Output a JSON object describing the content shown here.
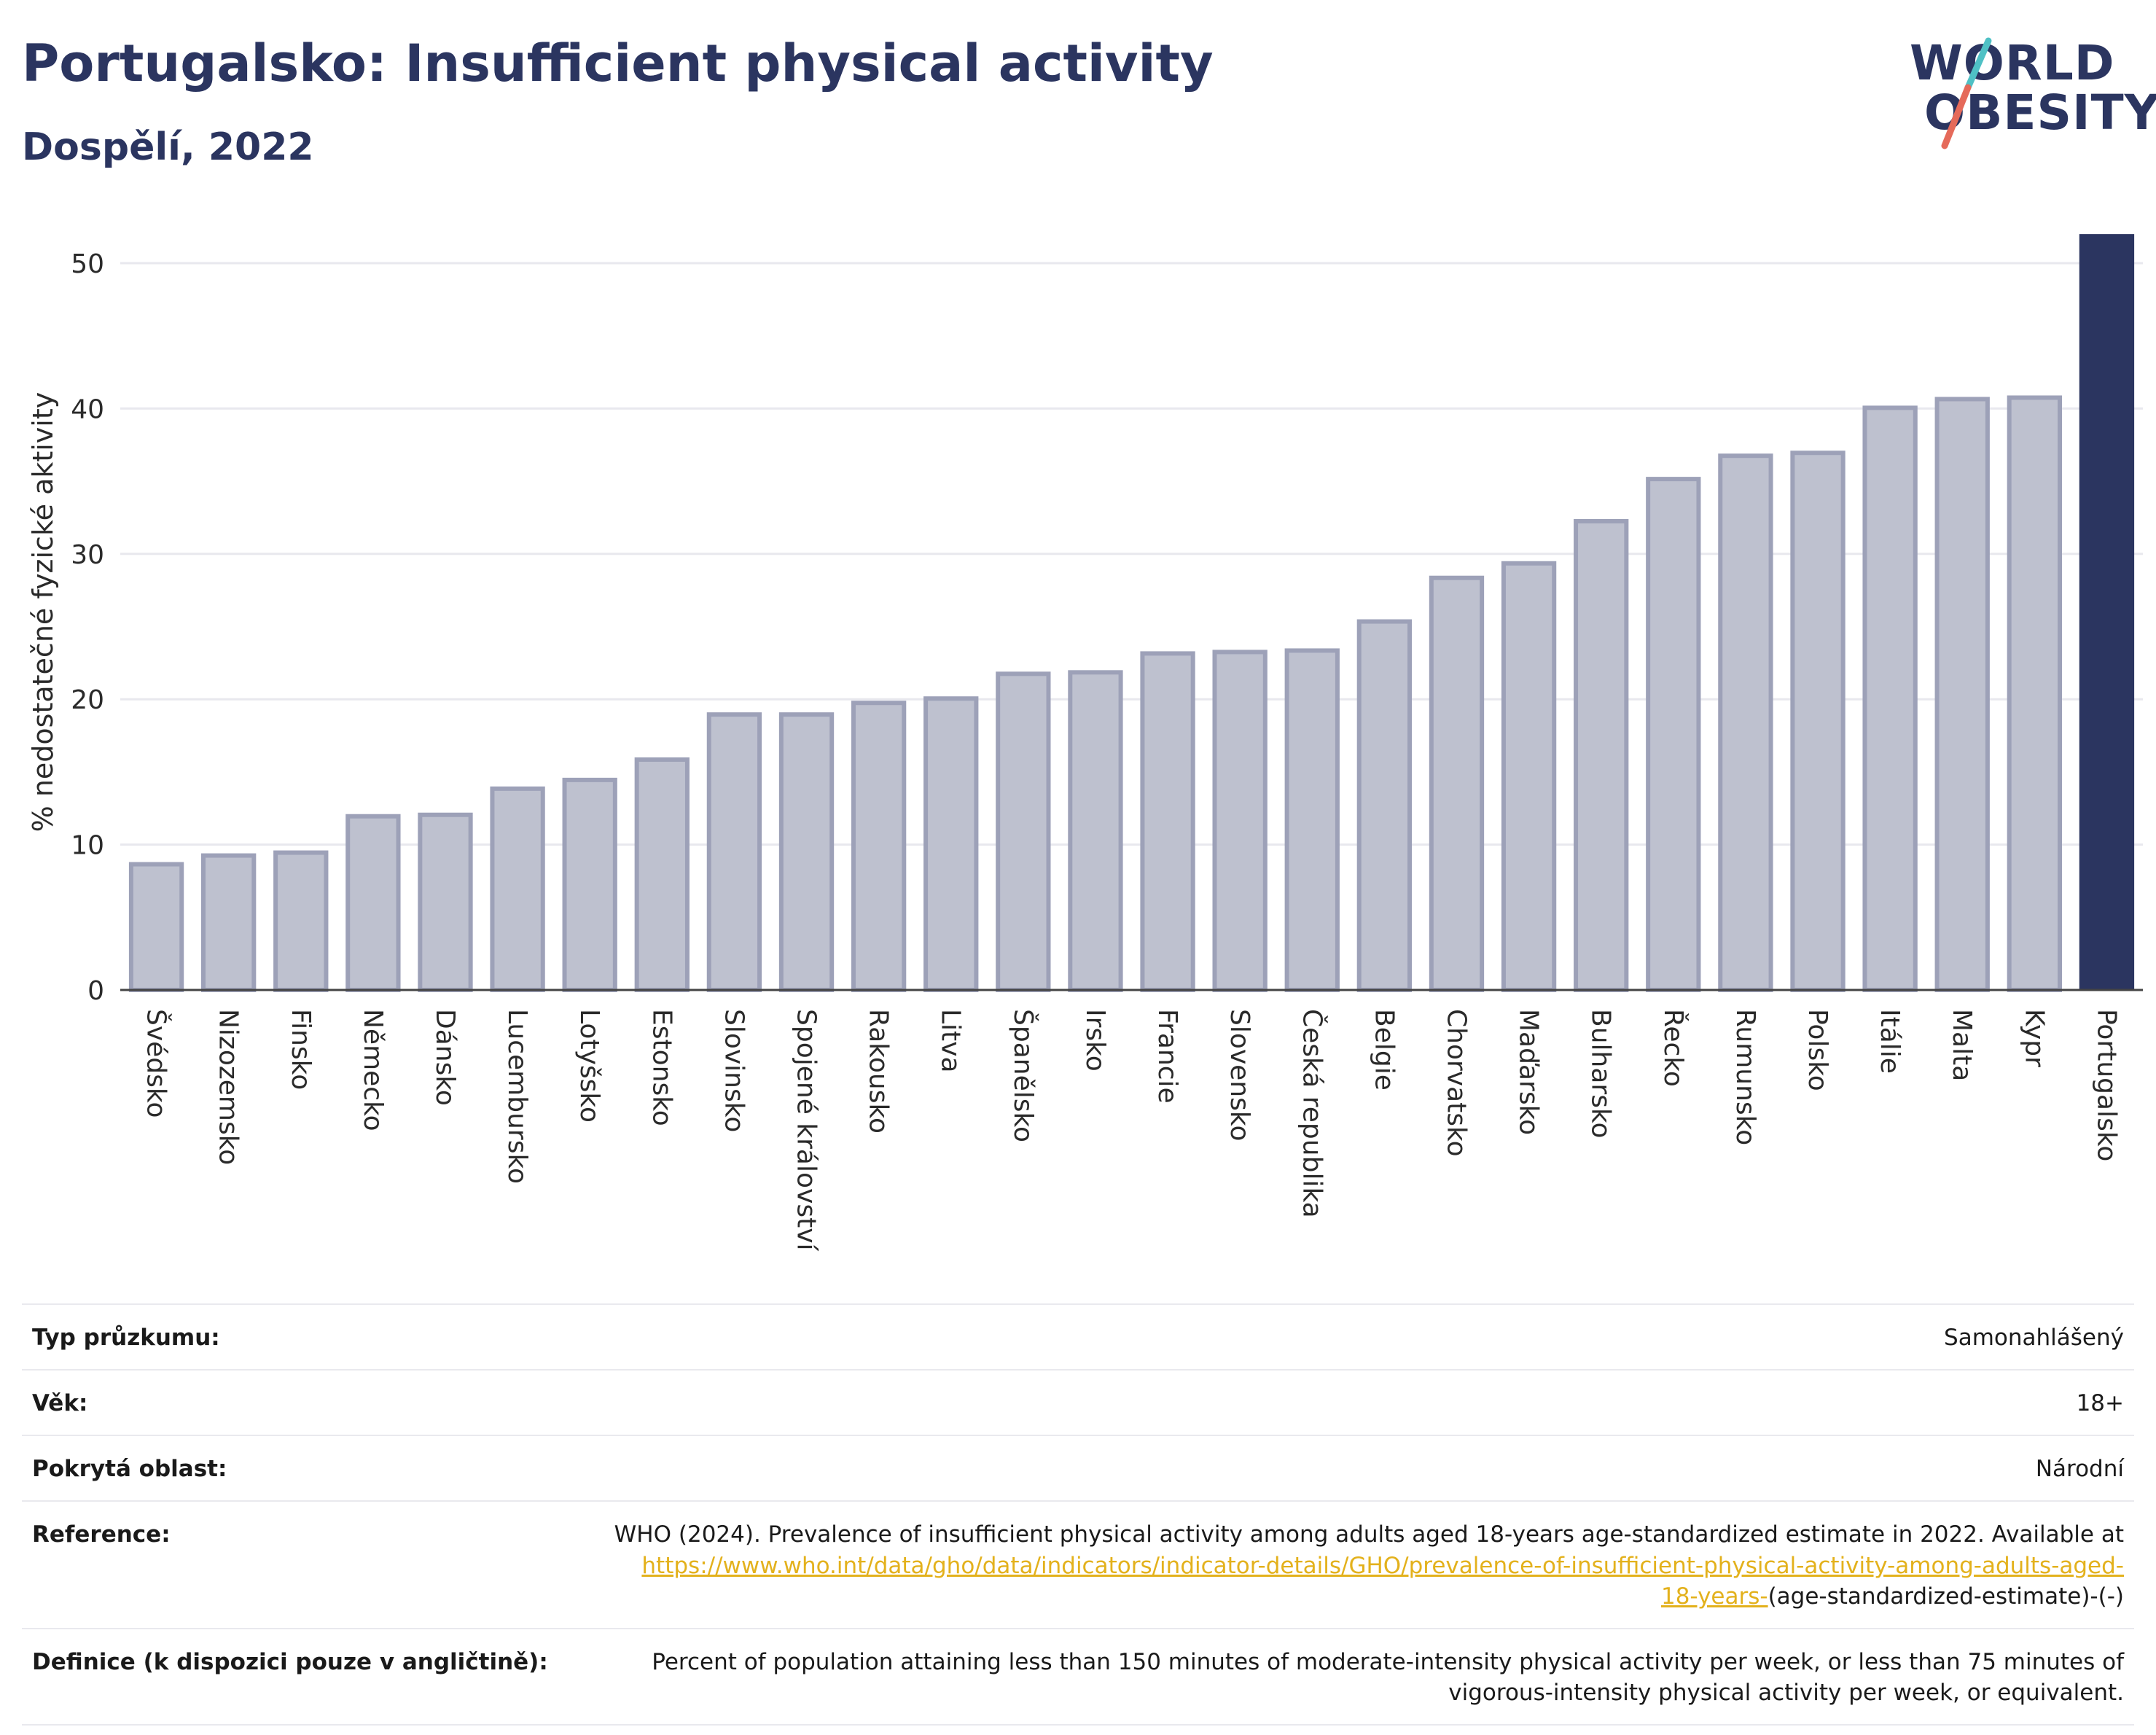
{
  "header": {
    "title": "Portugalsko: Insufficient physical activity",
    "subtitle": "Dospělí, 2022"
  },
  "logo": {
    "line1": "WORLD",
    "line2": "OBESITY"
  },
  "colors": {
    "highlight": "#2b3560",
    "bar_fill": "#bec1cf",
    "bar_stroke": "#9da1b8",
    "grid": "#e8e8ee",
    "logo_teal": "#4fc1c5",
    "logo_coral": "#e56a5a",
    "link": "#e3b11c"
  },
  "chart_data": {
    "type": "bar",
    "ylabel": "% nedostatečné fyzické aktivity",
    "ylim": [
      0,
      52
    ],
    "yticks": [
      0,
      10,
      20,
      30,
      40,
      50
    ],
    "grid": true,
    "categories": [
      "Švédsko",
      "Nizozemsko",
      "Finsko",
      "Německo",
      "Dánsko",
      "Lucembursko",
      "Lotyšsko",
      "Estonsko",
      "Slovinsko",
      "Spojené království",
      "Rakousko",
      "Litva",
      "Španělsko",
      "Irsko",
      "Francie",
      "Slovensko",
      "Česká republika",
      "Belgie",
      "Chorvatsko",
      "Maďarsko",
      "Bulharsko",
      "Řecko",
      "Rumunsko",
      "Polsko",
      "Itálie",
      "Malta",
      "Kypr",
      "Portugalsko"
    ],
    "values": [
      8.8,
      9.4,
      9.6,
      12.1,
      12.2,
      14.0,
      14.6,
      16.0,
      19.1,
      19.1,
      19.9,
      20.2,
      21.9,
      22.0,
      23.3,
      23.4,
      23.5,
      25.5,
      28.5,
      29.5,
      32.4,
      35.3,
      36.9,
      37.1,
      40.2,
      40.8,
      40.9,
      52.0
    ],
    "highlight": "Portugalsko"
  },
  "info": {
    "survey_type": {
      "label": "Typ průzkumu:",
      "value": "Samonahlášený"
    },
    "age": {
      "label": "Věk:",
      "value": "18+"
    },
    "coverage": {
      "label": "Pokrytá oblast:",
      "value": "Národní"
    },
    "reference": {
      "label": "Reference:",
      "text_before": "WHO (2024). Prevalence of insufficient physical activity among adults aged 18-years age-standardized estimate in 2022. Available at ",
      "link_text": "https://www.who.int/data/gho/data/indicators/indicator-details/GHO/prevalence-of-insufficient-physical-activity-among-adults-aged-18-years-",
      "text_after": "(age-standardized-estimate)-(-)"
    },
    "definition": {
      "label": "Definice (k dispozici pouze v angličtině):",
      "value": "Percent of population attaining less than 150 minutes of moderate-intensity physical activity per week, or less than 75 minutes of vigorous-intensity physical activity per week, or equivalent."
    }
  }
}
